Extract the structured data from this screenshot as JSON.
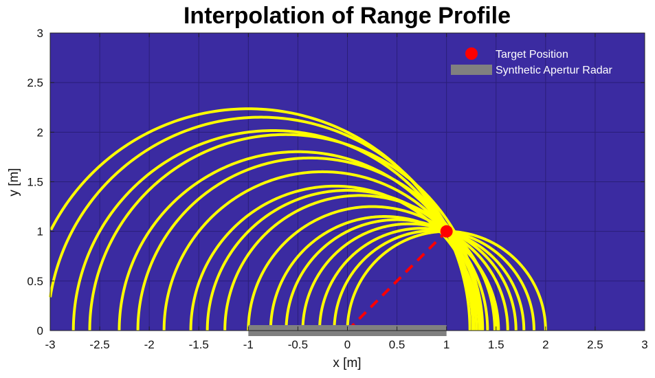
{
  "chart_data": {
    "type": "line",
    "title": "Interpolation of Range Profile",
    "xlabel": "x [m]",
    "ylabel": "y [m]",
    "xlim": [
      -3,
      3
    ],
    "ylim": [
      0,
      3
    ],
    "xticks": [
      -3,
      -2.5,
      -2,
      -1.5,
      -1,
      -0.5,
      0,
      0.5,
      1,
      1.5,
      2,
      2.5,
      3
    ],
    "yticks": [
      0,
      0.5,
      1,
      1.5,
      2,
      2.5,
      3
    ],
    "xtick_labels": [
      "-3",
      "-2.5",
      "-2",
      "-1.5",
      "-1",
      "-0.5",
      "0",
      "0.5",
      "1",
      "1.5",
      "2",
      "2.5",
      "3"
    ],
    "ytick_labels": [
      "0",
      "0.5",
      "1",
      "1.5",
      "2",
      "2.5",
      "3"
    ],
    "grid": true,
    "legend_position": "top-right",
    "background_color": "#3b2ba1",
    "range_arcs": {
      "color": "#ffff00",
      "centers_x": [
        -1.0,
        -0.875,
        -0.75,
        -0.625,
        -0.5,
        -0.375,
        -0.25,
        -0.125,
        0.0,
        0.125,
        0.25,
        0.375,
        0.5,
        0.625,
        0.75,
        0.875,
        1.0
      ],
      "radii": [
        2.236,
        2.151,
        2.016,
        1.976,
        1.803,
        1.74,
        1.601,
        1.456,
        1.414,
        1.362,
        1.25,
        1.15,
        1.118,
        1.076,
        1.031,
        1.008,
        1.0
      ],
      "y_min": 0
    },
    "series": [
      {
        "name": "Target Position",
        "type": "scatter",
        "color": "#ff0000",
        "x": [
          1
        ],
        "y": [
          1
        ]
      },
      {
        "name": "Synthetic Apertur Radar",
        "type": "bar",
        "color": "#808080",
        "x": [
          -1,
          1
        ],
        "y": [
          0,
          0
        ]
      }
    ],
    "range_line": {
      "color": "#ff0000",
      "style": "dashed",
      "x": [
        0,
        1
      ],
      "y": [
        0,
        1
      ]
    }
  }
}
